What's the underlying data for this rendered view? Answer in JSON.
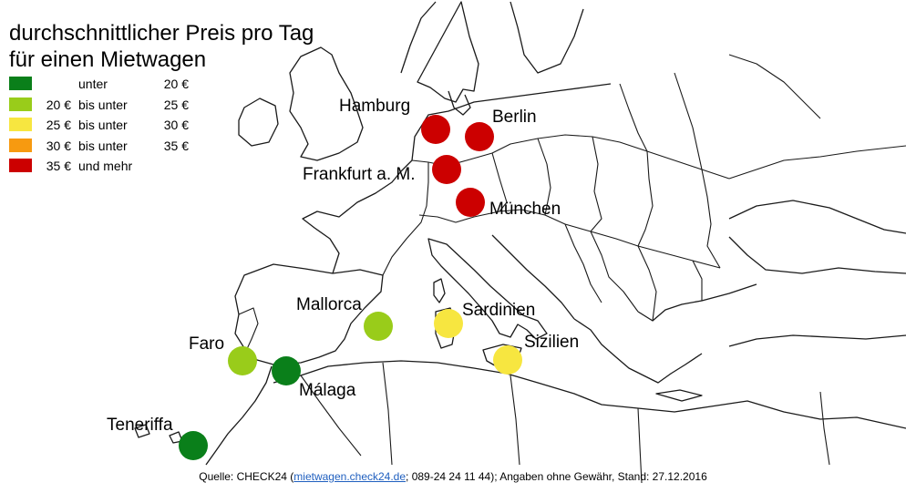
{
  "title_line1": "durchschnittlicher Preis pro Tag",
  "title_line2": "für einen Mietwagen",
  "legend": [
    {
      "from": "",
      "mid": "unter",
      "to": "20 €",
      "color": "#0a7f1a"
    },
    {
      "from": "20 €",
      "mid": "bis unter",
      "to": "25 €",
      "color": "#99cc1a"
    },
    {
      "from": "25 €",
      "mid": "bis unter",
      "to": "30 €",
      "color": "#f7e640"
    },
    {
      "from": "30 €",
      "mid": "bis unter",
      "to": "35 €",
      "color": "#f79a10"
    },
    {
      "from": "35 €",
      "mid": "und mehr",
      "to": "",
      "color": "#cc0000"
    }
  ],
  "cities": [
    {
      "name": "Hamburg",
      "price_class": "35 € und mehr",
      "color": "#cc0000"
    },
    {
      "name": "Berlin",
      "price_class": "35 € und mehr",
      "color": "#cc0000"
    },
    {
      "name": "Frankfurt a. M.",
      "price_class": "35 € und mehr",
      "color": "#cc0000"
    },
    {
      "name": "München",
      "price_class": "35 € und mehr",
      "color": "#cc0000"
    },
    {
      "name": "Mallorca",
      "price_class": "20 € bis unter 25 €",
      "color": "#99cc1a"
    },
    {
      "name": "Sardinien",
      "price_class": "25 € bis unter 30 €",
      "color": "#f7e640"
    },
    {
      "name": "Faro",
      "price_class": "20 € bis unter 25 €",
      "color": "#99cc1a"
    },
    {
      "name": "Sizilien",
      "price_class": "25 € bis unter 30 €",
      "color": "#f7e640"
    },
    {
      "name": "Málaga",
      "price_class": "unter 20 €",
      "color": "#0a7f1a"
    },
    {
      "name": "Teneriffa",
      "price_class": "unter 20 €",
      "color": "#0a7f1a"
    }
  ],
  "source": {
    "prefix": "Quelle: CHECK24 (",
    "link": "mietwagen.check24.de",
    "suffix": "; 089-24 24 11 44); Angaben ohne Gewähr, Stand: 27.12.2016"
  }
}
